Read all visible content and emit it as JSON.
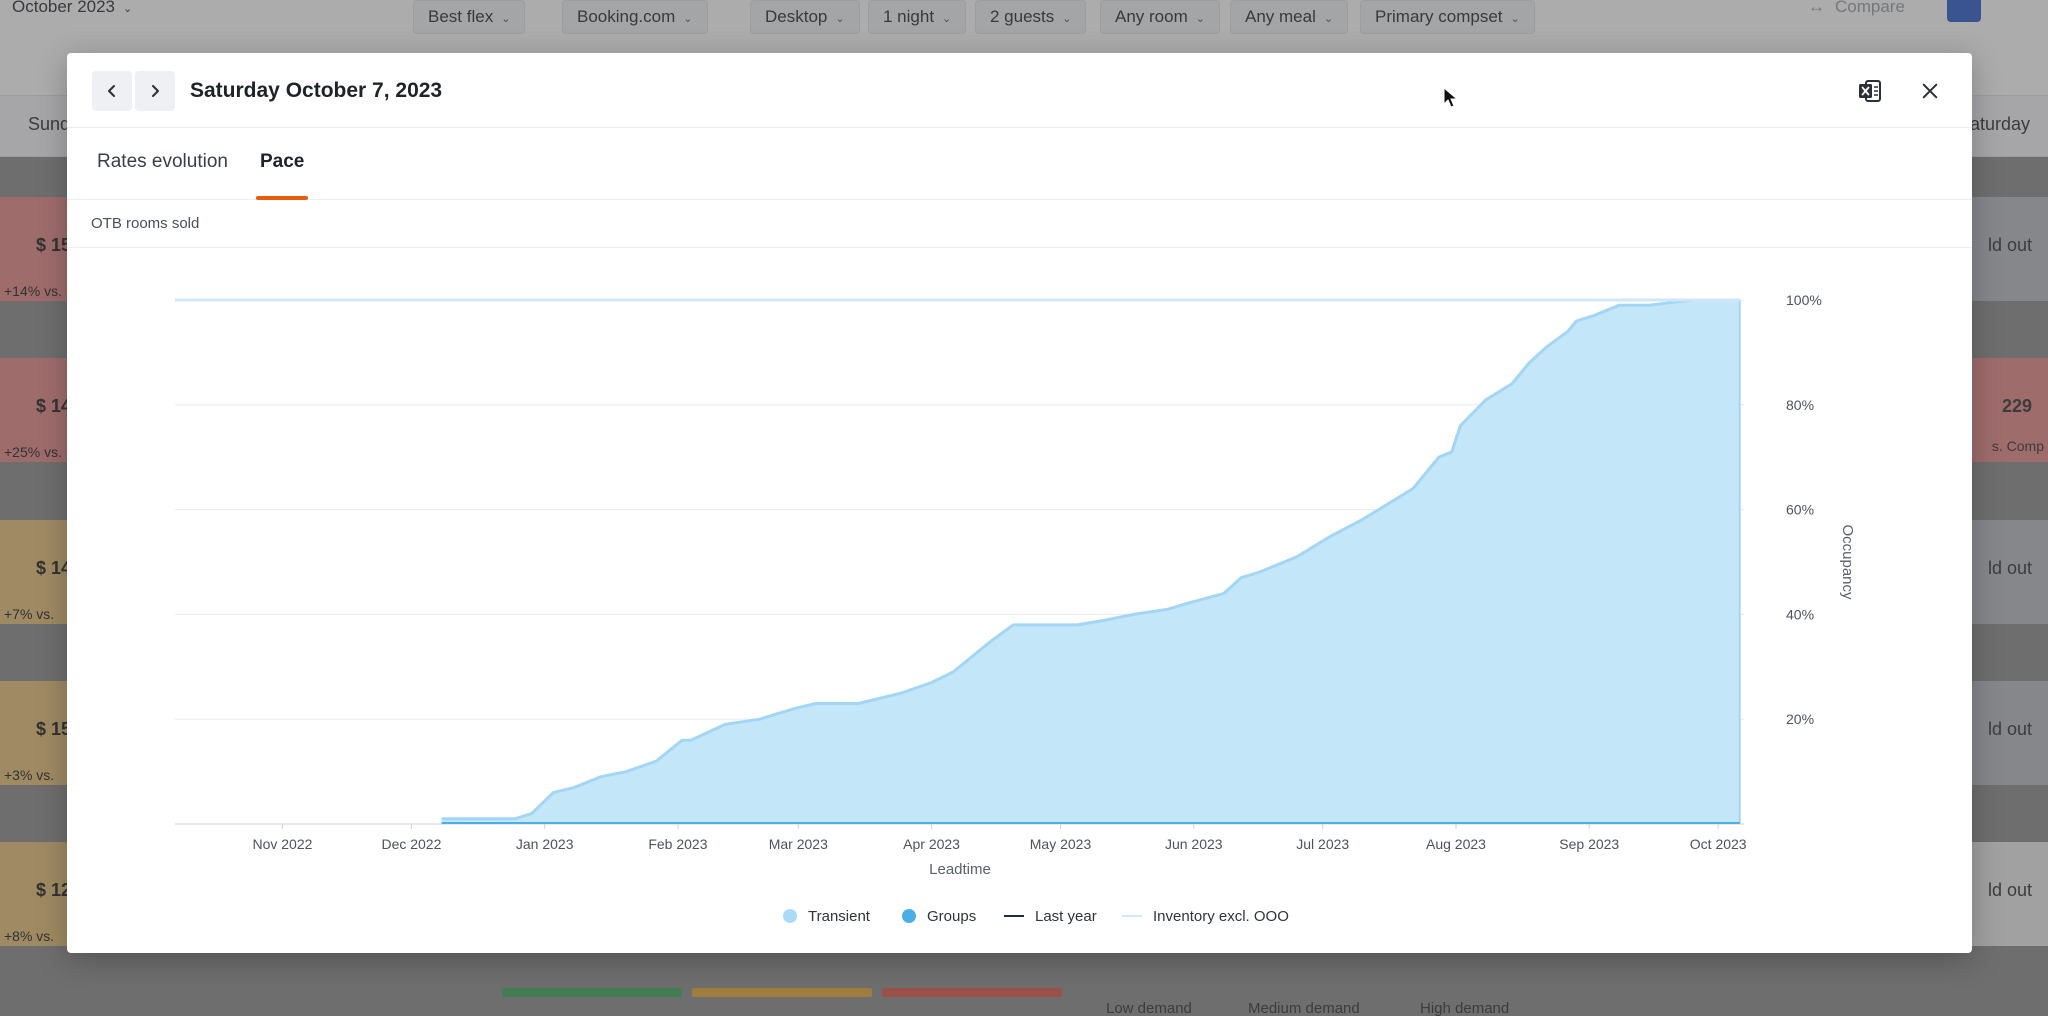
{
  "background": {
    "month_label": "October 2023",
    "filters": [
      "Best flex",
      "Booking.com",
      "Desktop",
      "1 night",
      "2 guests",
      "Any room",
      "Any meal",
      "Primary compset"
    ],
    "compare_label": "Compare",
    "weekdays": {
      "first": "Sunday",
      "last": "Saturday"
    },
    "left_cells": [
      {
        "price": "$ 15",
        "delta": "+14% vs.",
        "color": "#e88a8a"
      },
      {
        "price": "$ 14",
        "delta": "+25% vs.",
        "color": "#e88a8a"
      },
      {
        "price": "$ 14",
        "delta": "+7% vs.",
        "color": "#e8c27a"
      },
      {
        "price": "$ 15",
        "delta": "+3% vs.",
        "color": "#e8c27a"
      },
      {
        "price": "$ 12",
        "delta": "+8% vs.",
        "color": "#e8c27a"
      }
    ],
    "right_cells": [
      {
        "text": "ld out",
        "sub": "",
        "color": "#b9bcc4"
      },
      {
        "text": "229",
        "sub": "s. Comp",
        "color": "#e88a8a"
      },
      {
        "text": "ld out",
        "sub": "",
        "color": "#b9bcc4"
      },
      {
        "text": "ld out",
        "sub": "",
        "color": "#b9bcc4"
      },
      {
        "text": "ld out",
        "sub": "",
        "color": "#ececec"
      }
    ],
    "footer_legend": [
      "Low demand",
      "Medium demand",
      "High demand"
    ]
  },
  "modal": {
    "title": "Saturday October 7, 2023",
    "tabs": [
      {
        "label": "Rates evolution",
        "active": false
      },
      {
        "label": "Pace",
        "active": true
      }
    ],
    "section_label": "OTB rooms sold",
    "legend": [
      {
        "label": "Transient",
        "kind": "dot",
        "color": "#a8dbf6"
      },
      {
        "label": "Groups",
        "kind": "dot",
        "color": "#4baee6"
      },
      {
        "label": "Last year",
        "kind": "line",
        "color": "#1d2a4a"
      },
      {
        "label": "Inventory excl. OOO",
        "kind": "line",
        "color": "#cfe6fb"
      }
    ]
  },
  "chart_data": {
    "type": "area",
    "title": "",
    "xlabel": "Leadtime",
    "ylabel": "Occupancy",
    "x_ticks": [
      "Nov 2022",
      "Dec 2022",
      "Jan 2023",
      "Feb 2023",
      "Mar 2023",
      "Apr 2023",
      "May 2023",
      "Jun 2023",
      "Jul 2023",
      "Aug 2023",
      "Sep 2023",
      "Oct 2023"
    ],
    "y_ticks": [
      "20%",
      "40%",
      "60%",
      "80%",
      "100%"
    ],
    "ylim": [
      0,
      100
    ],
    "xlim": [
      "2022-10-07",
      "2023-10-07"
    ],
    "grid": true,
    "legend_position": "bottom",
    "series": [
      {
        "name": "Transient",
        "color": "#c3e6f9",
        "line_color": "#a3d6f4",
        "x": [
          "2022-12-08",
          "2022-12-25",
          "2022-12-29",
          "2023-01-03",
          "2023-01-08",
          "2023-01-14",
          "2023-01-20",
          "2023-01-27",
          "2023-02-02",
          "2023-02-04",
          "2023-02-12",
          "2023-02-20",
          "2023-02-28",
          "2023-03-05",
          "2023-03-15",
          "2023-03-25",
          "2023-04-01",
          "2023-04-06",
          "2023-04-12",
          "2023-04-15",
          "2023-04-20",
          "2023-04-27",
          "2023-05-05",
          "2023-05-12",
          "2023-05-18",
          "2023-05-26",
          "2023-05-30",
          "2023-06-08",
          "2023-06-12",
          "2023-06-16",
          "2023-06-25",
          "2023-07-03",
          "2023-07-10",
          "2023-07-16",
          "2023-07-22",
          "2023-07-28",
          "2023-07-31",
          "2023-08-02",
          "2023-08-08",
          "2023-08-14",
          "2023-08-18",
          "2023-08-22",
          "2023-08-27",
          "2023-08-29",
          "2023-09-02",
          "2023-09-08",
          "2023-09-15",
          "2023-09-25",
          "2023-10-06"
        ],
        "values": [
          1,
          1,
          2,
          6,
          7,
          9,
          10,
          12,
          16,
          16,
          19,
          20,
          22,
          23,
          23,
          25,
          27,
          29,
          33,
          35,
          38,
          38,
          38,
          39,
          40,
          41,
          42,
          44,
          47,
          48,
          51,
          55,
          58,
          61,
          64,
          70,
          71,
          76,
          81,
          84,
          88,
          91,
          94,
          96,
          97,
          99,
          99,
          100,
          100
        ]
      },
      {
        "name": "Groups",
        "color": "#4baee6",
        "x": [
          "2022-12-08",
          "2023-10-06"
        ],
        "values": [
          0,
          0
        ]
      },
      {
        "name": "Inventory excl. OOO",
        "color": "#cfe6fb",
        "x": [
          "2022-10-07",
          "2023-10-06"
        ],
        "values": [
          100,
          100
        ]
      }
    ]
  }
}
